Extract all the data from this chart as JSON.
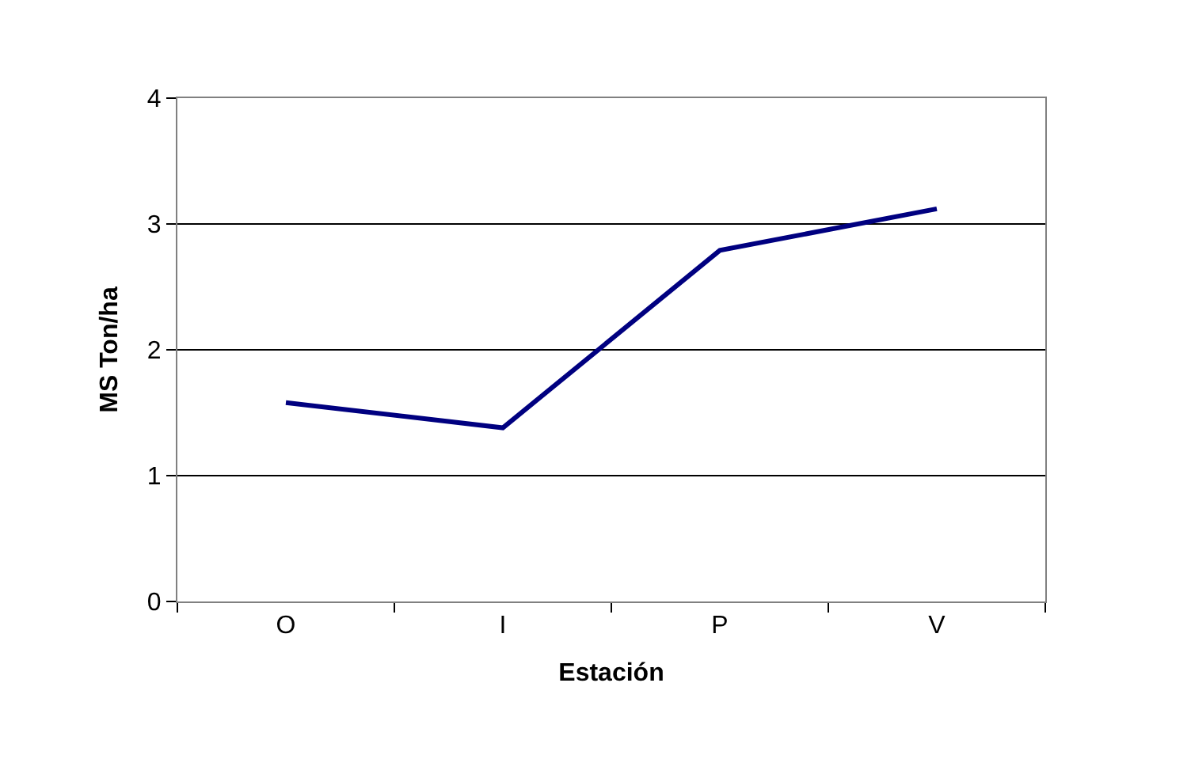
{
  "chart_data": {
    "type": "line",
    "xlabel": "Estación",
    "ylabel": "MS Ton/ha",
    "categories": [
      "O",
      "I",
      "P",
      "V"
    ],
    "series": [
      {
        "color": "#000080",
        "values": [
          1.58,
          1.38,
          2.79,
          3.12
        ]
      }
    ],
    "ylim": [
      0,
      4
    ],
    "yticks": [
      0,
      1,
      2,
      3,
      4
    ],
    "grid": "y",
    "legend": false,
    "marker": "none",
    "line_style": "solid"
  }
}
